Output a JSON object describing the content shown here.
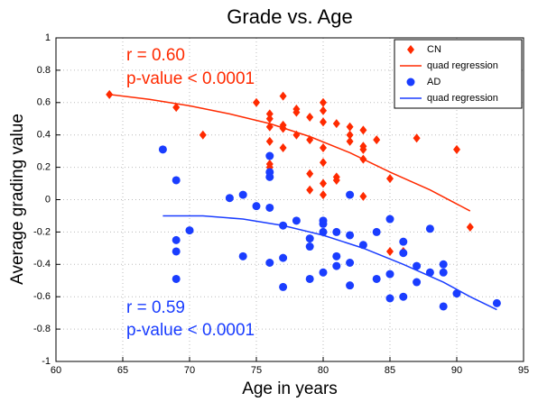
{
  "chart_data": {
    "type": "scatter",
    "title": "Grade vs. Age",
    "xlabel": "Age in years",
    "ylabel": "Average grading value",
    "xlim": [
      60,
      95
    ],
    "xticks": [
      60,
      65,
      70,
      75,
      80,
      85,
      90,
      95
    ],
    "ylim": [
      -1,
      1
    ],
    "yticks": [
      -1,
      -0.8,
      -0.6,
      -0.4,
      -0.2,
      0,
      0.2,
      0.4,
      0.6,
      0.8,
      1
    ],
    "grid": true,
    "legend": "upper right",
    "series": [
      {
        "name": "CN",
        "type": "scatter",
        "marker": "diamond",
        "color": "#ff2a00",
        "x": [
          64,
          69,
          71,
          75,
          76,
          76,
          76,
          76,
          76,
          76,
          77,
          77,
          77,
          77,
          78,
          78,
          78,
          79,
          79,
          79,
          79,
          80,
          80,
          80,
          80,
          80,
          80,
          80,
          81,
          81,
          81,
          82,
          82,
          82,
          83,
          83,
          83,
          83,
          83,
          84,
          85,
          85,
          86,
          87,
          90,
          91
        ],
        "values": [
          0.65,
          0.57,
          0.4,
          0.6,
          0.53,
          0.5,
          0.45,
          0.36,
          0.22,
          0.2,
          0.64,
          0.46,
          0.44,
          0.32,
          0.56,
          0.54,
          0.4,
          0.51,
          0.37,
          0.16,
          0.06,
          0.6,
          0.55,
          0.48,
          0.32,
          0.23,
          0.1,
          0.03,
          0.47,
          0.14,
          0.12,
          0.45,
          0.4,
          0.36,
          0.43,
          0.33,
          0.31,
          0.25,
          0.02,
          0.37,
          0.13,
          -0.32,
          -0.32,
          0.38,
          0.31,
          -0.17
        ]
      },
      {
        "name": "quad regression",
        "type": "line",
        "color": "#ff2a00",
        "x": [
          64,
          67,
          70,
          73,
          76,
          79,
          82,
          85,
          88,
          91
        ],
        "values": [
          0.65,
          0.62,
          0.58,
          0.53,
          0.47,
          0.39,
          0.29,
          0.17,
          0.06,
          -0.07
        ]
      },
      {
        "name": "AD",
        "type": "scatter",
        "marker": "circle",
        "color": "#1a3dff",
        "x": [
          68,
          69,
          69,
          69,
          69,
          70,
          73,
          74,
          74,
          75,
          76,
          76,
          76,
          76,
          76,
          77,
          77,
          77,
          78,
          79,
          79,
          79,
          80,
          80,
          80,
          80,
          81,
          81,
          81,
          82,
          82,
          82,
          82,
          83,
          84,
          84,
          85,
          85,
          85,
          86,
          86,
          86,
          87,
          87,
          88,
          88,
          89,
          89,
          89,
          90,
          93
        ],
        "values": [
          0.31,
          0.12,
          -0.25,
          -0.32,
          -0.49,
          -0.19,
          0.01,
          0.03,
          -0.35,
          -0.04,
          0.27,
          0.17,
          0.14,
          -0.05,
          -0.39,
          -0.16,
          -0.36,
          -0.54,
          -0.13,
          -0.24,
          -0.29,
          -0.49,
          -0.13,
          -0.15,
          -0.2,
          -0.45,
          -0.2,
          -0.35,
          -0.41,
          0.03,
          -0.22,
          -0.39,
          -0.53,
          -0.28,
          -0.2,
          -0.49,
          -0.12,
          -0.46,
          -0.61,
          -0.26,
          -0.33,
          -0.6,
          -0.41,
          -0.51,
          -0.18,
          -0.45,
          -0.4,
          -0.45,
          -0.66,
          -0.58,
          -0.64
        ]
      },
      {
        "name": "quad regression",
        "type": "line",
        "color": "#1a3dff",
        "x": [
          68,
          71,
          74,
          77,
          80,
          83,
          86,
          89,
          91,
          93
        ],
        "values": [
          -0.1,
          -0.1,
          -0.12,
          -0.16,
          -0.22,
          -0.3,
          -0.4,
          -0.51,
          -0.6,
          -0.68
        ]
      }
    ],
    "annotations": [
      {
        "text": "r = 0.60",
        "color": "#ff2a00"
      },
      {
        "text": "p-value < 0.0001",
        "color": "#ff2a00"
      },
      {
        "text": "r = 0.59",
        "color": "#1a3dff"
      },
      {
        "text": "p-value < 0.0001",
        "color": "#1a3dff"
      }
    ]
  }
}
